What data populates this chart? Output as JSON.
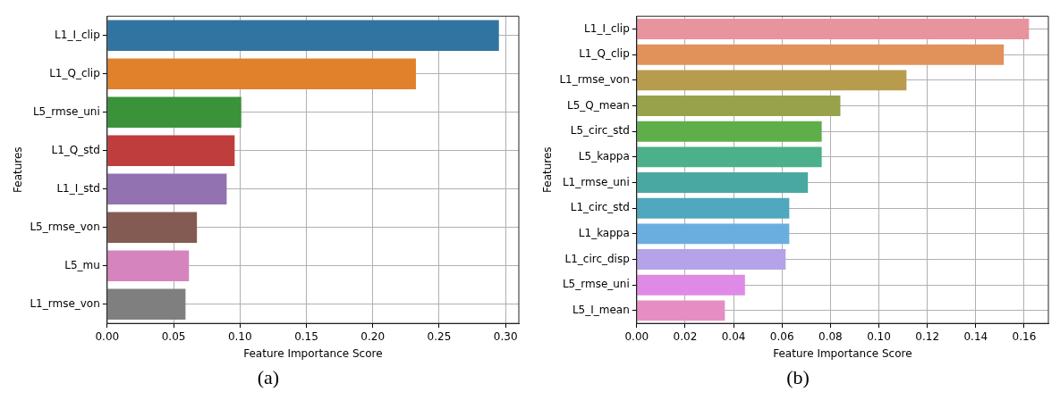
{
  "chart_data": [
    {
      "type": "bar",
      "orientation": "horizontal",
      "xlabel": "Feature Importance Score",
      "ylabel": "Features",
      "categories": [
        "L1_I_clip",
        "L1_Q_clip",
        "L5_rmse_uni",
        "L1_Q_std",
        "L1_I_std",
        "L5_rmse_von",
        "L5_mu",
        "L1_rmse_von"
      ],
      "values": [
        0.295,
        0.2325,
        0.101,
        0.096,
        0.09,
        0.0676,
        0.0616,
        0.059
      ],
      "colors": [
        "#3274a1",
        "#e1812c",
        "#3a923a",
        "#c03d3e",
        "#9372b2",
        "#845b53",
        "#d684bd",
        "#7f7f7f"
      ],
      "xlim": [
        0,
        0.31
      ],
      "xticks": [
        {
          "value": 0,
          "label": "0.00"
        },
        {
          "value": 0.05,
          "label": "0.05"
        },
        {
          "value": 0.1,
          "label": "0.10"
        },
        {
          "value": 0.15,
          "label": "0.15"
        },
        {
          "value": 0.2,
          "label": "0.20"
        },
        {
          "value": 0.25,
          "label": "0.25"
        },
        {
          "value": 0.3,
          "label": "0.30"
        }
      ],
      "grid": true,
      "annotations": [
        "(a)"
      ]
    },
    {
      "type": "bar",
      "orientation": "horizontal",
      "xlabel": "Feature Importance Score",
      "ylabel": "Features",
      "categories": [
        "L1_I_clip",
        "L1_Q_clip",
        "L1_rmse_von",
        "L5_Q_mean",
        "L5_circ_std",
        "L5_kappa",
        "L1_rmse_uni",
        "L1_circ_std",
        "L1_kappa",
        "L1_circ_disp",
        "L5_rmse_uni",
        "L5_I_mean"
      ],
      "values": [
        0.162,
        0.1516,
        0.1114,
        0.0841,
        0.0764,
        0.0764,
        0.0707,
        0.063,
        0.063,
        0.0615,
        0.0447,
        0.0364
      ],
      "colors": [
        "#e8949e",
        "#e1915a",
        "#b89c4e",
        "#98a24a",
        "#5fae4a",
        "#4cb08a",
        "#4aa8a2",
        "#4fa8bd",
        "#6aaee0",
        "#b5a2e8",
        "#df8ae6",
        "#e68ec3"
      ],
      "xlim": [
        0,
        0.17
      ],
      "xticks": [
        {
          "value": 0,
          "label": "0.00"
        },
        {
          "value": 0.02,
          "label": "0.02"
        },
        {
          "value": 0.04,
          "label": "0.04"
        },
        {
          "value": 0.06,
          "label": "0.06"
        },
        {
          "value": 0.08,
          "label": "0.08"
        },
        {
          "value": 0.1,
          "label": "0.10"
        },
        {
          "value": 0.12,
          "label": "0.12"
        },
        {
          "value": 0.14,
          "label": "0.14"
        },
        {
          "value": 0.16,
          "label": "0.16"
        }
      ],
      "grid": true,
      "annotations": [
        "(b)"
      ]
    }
  ]
}
